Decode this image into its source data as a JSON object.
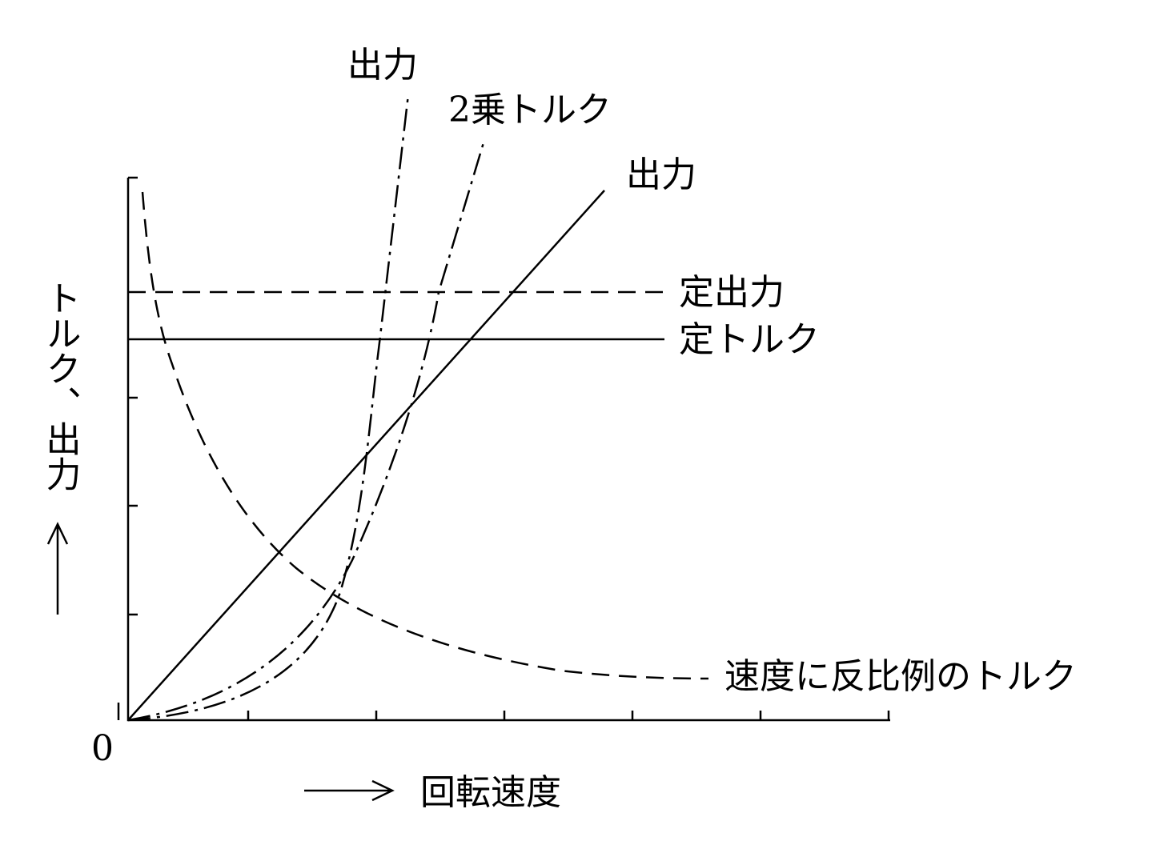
{
  "curve_labels": [
    "出力",
    "2乗トルク",
    "出力",
    "定出力",
    "定トルク",
    "速度に反比例のトルク"
  ],
  "origin_label": "0",
  "x_axis_label": "回転速度",
  "y_axis_label": "トルク、出力"
}
